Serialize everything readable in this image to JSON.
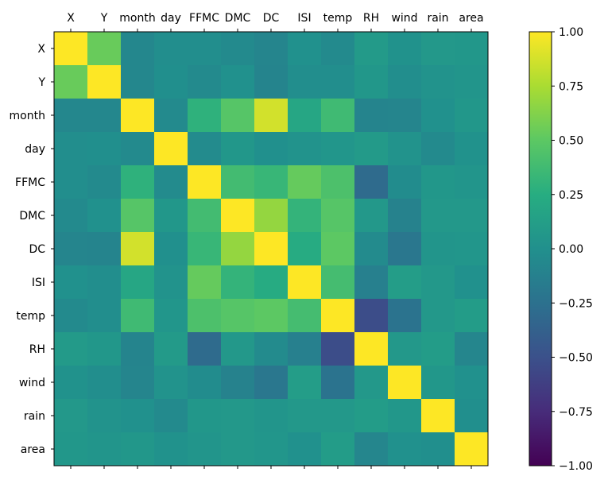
{
  "chart_data": {
    "type": "heatmap",
    "title": "",
    "xlabel": "",
    "ylabel": "",
    "x_labels": [
      "X",
      "Y",
      "month",
      "day",
      "FFMC",
      "DMC",
      "DC",
      "ISI",
      "temp",
      "RH",
      "wind",
      "rain",
      "area"
    ],
    "y_labels": [
      "X",
      "Y",
      "month",
      "day",
      "FFMC",
      "DMC",
      "DC",
      "ISI",
      "temp",
      "RH",
      "wind",
      "rain",
      "area"
    ],
    "values": [
      [
        1.0,
        0.54,
        -0.07,
        -0.02,
        -0.02,
        -0.05,
        -0.09,
        0.01,
        -0.05,
        0.09,
        0.02,
        0.07,
        0.06
      ],
      [
        0.54,
        1.0,
        -0.07,
        -0.01,
        -0.05,
        0.01,
        -0.1,
        -0.02,
        -0.02,
        0.06,
        -0.02,
        0.03,
        0.04
      ],
      [
        -0.07,
        -0.07,
        1.0,
        -0.05,
        0.29,
        0.47,
        0.87,
        0.19,
        0.37,
        -0.1,
        -0.09,
        0.01,
        0.06
      ],
      [
        -0.02,
        -0.01,
        -0.05,
        1.0,
        -0.04,
        0.06,
        0.0,
        0.03,
        0.05,
        0.09,
        0.03,
        -0.05,
        0.02
      ],
      [
        -0.02,
        -0.05,
        0.29,
        -0.04,
        1.0,
        0.38,
        0.33,
        0.53,
        0.43,
        -0.3,
        -0.03,
        0.06,
        0.04
      ],
      [
        -0.05,
        0.01,
        0.47,
        0.06,
        0.38,
        1.0,
        0.68,
        0.31,
        0.47,
        0.07,
        -0.11,
        0.07,
        0.07
      ],
      [
        -0.09,
        -0.1,
        0.87,
        0.0,
        0.33,
        0.68,
        1.0,
        0.23,
        0.5,
        -0.04,
        -0.2,
        0.04,
        0.05
      ],
      [
        0.01,
        -0.02,
        0.19,
        0.03,
        0.53,
        0.31,
        0.23,
        1.0,
        0.39,
        -0.13,
        0.11,
        0.07,
        0.01
      ],
      [
        -0.05,
        -0.02,
        0.37,
        0.05,
        0.43,
        0.47,
        0.5,
        0.39,
        1.0,
        -0.53,
        -0.23,
        0.07,
        0.1
      ],
      [
        0.09,
        0.06,
        -0.1,
        0.09,
        -0.3,
        0.07,
        -0.04,
        -0.13,
        -0.53,
        1.0,
        0.07,
        0.1,
        -0.08
      ],
      [
        0.02,
        -0.02,
        -0.09,
        0.03,
        -0.03,
        -0.11,
        -0.2,
        0.11,
        -0.23,
        0.07,
        1.0,
        0.06,
        0.01
      ],
      [
        0.07,
        0.03,
        0.01,
        -0.05,
        0.06,
        0.07,
        0.04,
        0.07,
        0.07,
        0.1,
        0.06,
        1.0,
        -0.01
      ],
      [
        0.06,
        0.04,
        0.06,
        0.02,
        0.04,
        0.07,
        0.05,
        0.01,
        0.1,
        -0.08,
        0.01,
        -0.01,
        1.0
      ]
    ],
    "value_range": [
      -1.0,
      1.0
    ],
    "colormap": "viridis",
    "colorbar": {
      "ticks": [
        1.0,
        0.75,
        0.5,
        0.25,
        0.0,
        -0.25,
        -0.5,
        -0.75,
        -1.0
      ],
      "tick_labels": [
        "1.00",
        "0.75",
        "0.50",
        "0.25",
        "0.00",
        "−0.25",
        "−0.50",
        "−0.75",
        "−1.00"
      ],
      "placement": "right"
    },
    "x_axis_position": "top",
    "grid": false,
    "legend": "none"
  },
  "colors": {
    "axis": "#000000",
    "background": "#ffffff"
  }
}
